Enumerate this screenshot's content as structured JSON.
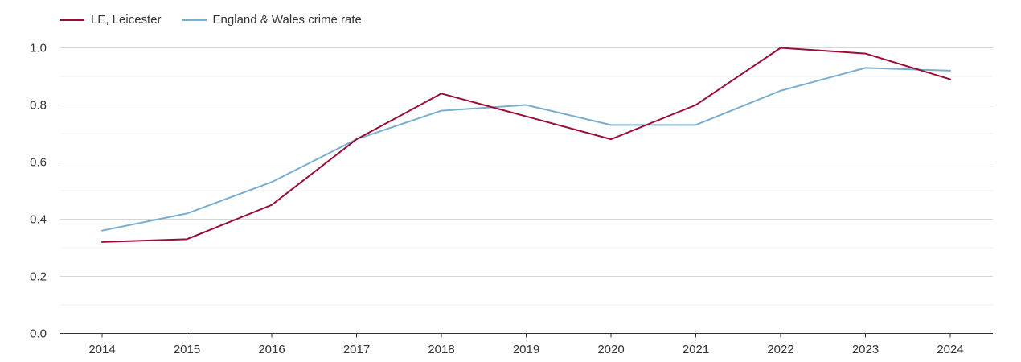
{
  "chart_data": {
    "type": "line",
    "title": "",
    "xlabel": "",
    "ylabel": "",
    "x": [
      "2014",
      "2015",
      "2016",
      "2017",
      "2018",
      "2019",
      "2020",
      "2021",
      "2022",
      "2023",
      "2024"
    ],
    "ylim": [
      0,
      1.0
    ],
    "y_ticks": [
      "0.0",
      "0.2",
      "0.4",
      "0.6",
      "0.8",
      "1.0"
    ],
    "grid": true,
    "legend_position": "top-left",
    "series": [
      {
        "name": "LE, Leicester",
        "color": "#9b0d35",
        "values": [
          0.32,
          0.33,
          0.45,
          0.68,
          0.84,
          0.76,
          0.68,
          0.8,
          1.0,
          0.98,
          0.89
        ]
      },
      {
        "name": "England & Wales crime rate",
        "color": "#7aaed0",
        "values": [
          0.36,
          0.42,
          0.53,
          0.68,
          0.78,
          0.8,
          0.73,
          0.73,
          0.85,
          0.93,
          0.92
        ]
      }
    ]
  }
}
